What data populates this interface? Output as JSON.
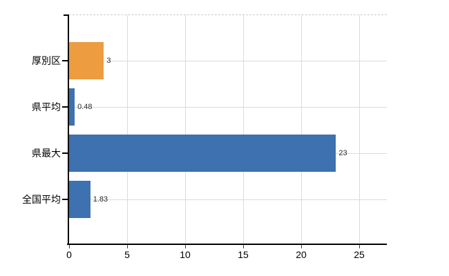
{
  "chart_data": {
    "type": "bar",
    "orientation": "horizontal",
    "title": "",
    "categories": [
      "厚別区",
      "県平均",
      "県最大",
      "全国平均"
    ],
    "values": [
      3,
      0.48,
      23,
      1.83
    ],
    "value_labels": [
      "3",
      "0.48",
      "23",
      "1.83"
    ],
    "series": [
      {
        "name": "厚別区",
        "value": 3,
        "color": "#ED9C40"
      },
      {
        "name": "県平均",
        "value": 0.48,
        "color": "#3D71AF"
      },
      {
        "name": "県最大",
        "value": 23,
        "color": "#3D71AF"
      },
      {
        "name": "全国平均",
        "value": 1.83,
        "color": "#3D71AF"
      }
    ],
    "bar_colors": [
      "#ED9C40",
      "#3D71AF",
      "#3D71AF",
      "#3D71AF"
    ],
    "x_ticks": [
      0,
      5,
      10,
      15,
      20,
      25
    ],
    "x_tick_labels": [
      "0",
      "5",
      "10",
      "15",
      "20",
      "25"
    ],
    "xlim": [
      0,
      27.4
    ],
    "xlabel": "",
    "ylabel": "",
    "grid": true,
    "legend": "none"
  },
  "colors": {
    "bar_orange": "#ED9C40",
    "bar_blue": "#3D71AF",
    "axis": "#000000",
    "gridline": "#D8DCD8",
    "top_border_dashed": "#C6CAC6",
    "label_text": "#000000",
    "value_text": "#2B2B2B",
    "background": "#FFFFFF"
  }
}
